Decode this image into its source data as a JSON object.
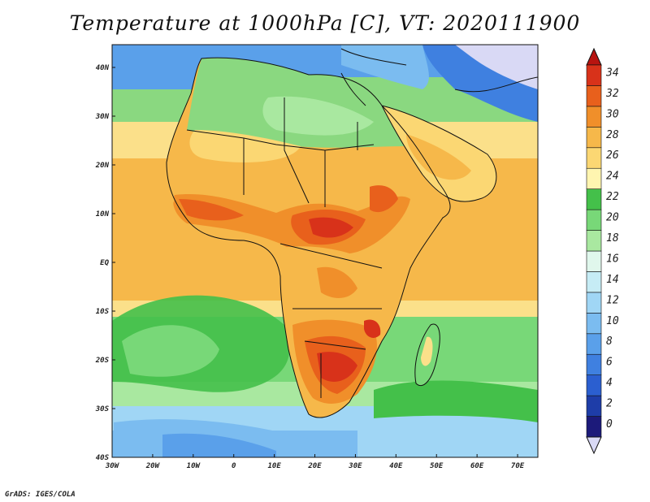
{
  "title": "Temperature at 1000hPa [C], VT: 2020111900",
  "footer": "GrADS: IGES/COLA",
  "map": {
    "region": "Africa",
    "lon_range": [
      -30,
      75
    ],
    "lat_range": [
      -40,
      46
    ],
    "x_ticks": [
      "30W",
      "20W",
      "10W",
      "0",
      "10E",
      "20E",
      "30E",
      "40E",
      "50E",
      "60E",
      "70E"
    ],
    "y_ticks": [
      "40S",
      "30S",
      "20S",
      "10S",
      "EQ",
      "10N",
      "20N",
      "30N",
      "40N"
    ],
    "variable": "Temperature at 1000hPa",
    "units": "C"
  },
  "colorbar": {
    "labels": [
      "0",
      "2",
      "4",
      "6",
      "8",
      "10",
      "12",
      "14",
      "16",
      "18",
      "20",
      "22",
      "24",
      "26",
      "28",
      "30",
      "32",
      "34"
    ],
    "colors": [
      "#d9d9f5",
      "#1c1a7a",
      "#1e3da8",
      "#2b5fd0",
      "#3f80e0",
      "#5aa0ea",
      "#7bbcf0",
      "#a0d6f5",
      "#c6ecf5",
      "#e0f7ec",
      "#a9e8a0",
      "#78d878",
      "#44c04a",
      "#fff5b0",
      "#fbd773",
      "#f6b84a",
      "#f08f2a",
      "#e8601c",
      "#d8321a",
      "#b81410"
    ]
  },
  "colors": {
    "ocean_tropical": "#f7c867",
    "ocean_warm": "#fbe08a",
    "ocean_cool": "#7fd27a",
    "ocean_cold": "#a8d8f0",
    "land_hot": "#e0501c",
    "land_warm": "#f6b84a",
    "land_mild": "#8ad880",
    "border": "#111111"
  }
}
